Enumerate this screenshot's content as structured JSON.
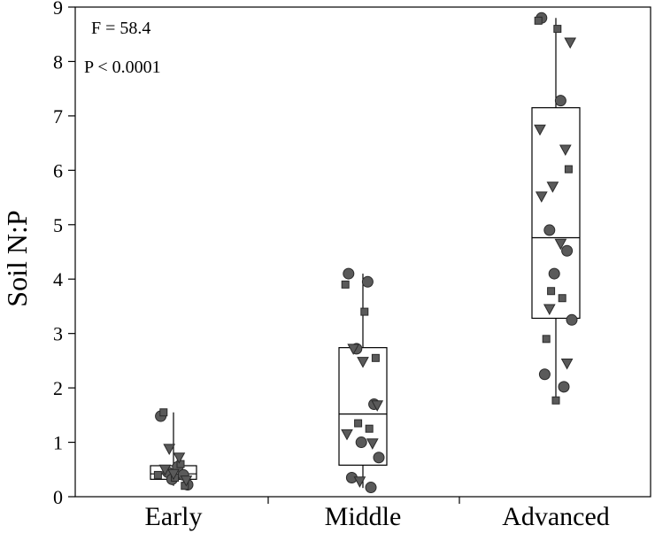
{
  "chart_data": {
    "type": "box",
    "ylabel": "Soil N:P",
    "xlabel": "",
    "ylim": [
      0,
      9
    ],
    "yticks": [
      "0",
      "1",
      "2",
      "3",
      "4",
      "5",
      "6",
      "7",
      "8",
      "9"
    ],
    "categories": [
      "Early",
      "Middle",
      "Advanced"
    ],
    "annotations": [
      "F = 58.4",
      "P < 0.0001"
    ],
    "boxes": [
      {
        "category": "Early",
        "whisker_low": 0.2,
        "q1": 0.32,
        "median": 0.42,
        "q3": 0.57,
        "whisker_high": 1.55
      },
      {
        "category": "Middle",
        "whisker_low": 0.16,
        "q1": 0.58,
        "median": 1.52,
        "q3": 2.74,
        "whisker_high": 4.1
      },
      {
        "category": "Advanced",
        "whisker_low": 1.75,
        "q1": 3.28,
        "median": 4.76,
        "q3": 7.15,
        "whisker_high": 8.8
      }
    ],
    "points": [
      {
        "category": "Early",
        "marker": "circle",
        "y": 1.48
      },
      {
        "category": "Early",
        "marker": "circle",
        "y": 0.55
      },
      {
        "category": "Early",
        "marker": "circle",
        "y": 0.45
      },
      {
        "category": "Early",
        "marker": "circle",
        "y": 0.4
      },
      {
        "category": "Early",
        "marker": "circle",
        "y": 0.32
      },
      {
        "category": "Early",
        "marker": "circle",
        "y": 0.22
      },
      {
        "category": "Early",
        "marker": "square",
        "y": 1.55
      },
      {
        "category": "Early",
        "marker": "square",
        "y": 0.6
      },
      {
        "category": "Early",
        "marker": "square",
        "y": 0.4
      },
      {
        "category": "Early",
        "marker": "square",
        "y": 0.35
      },
      {
        "category": "Early",
        "marker": "square",
        "y": 0.2
      },
      {
        "category": "Early",
        "marker": "triangle",
        "y": 0.88
      },
      {
        "category": "Early",
        "marker": "triangle",
        "y": 0.72
      },
      {
        "category": "Early",
        "marker": "triangle",
        "y": 0.5
      },
      {
        "category": "Early",
        "marker": "triangle",
        "y": 0.42
      },
      {
        "category": "Early",
        "marker": "triangle",
        "y": 0.3
      },
      {
        "category": "Middle",
        "marker": "circle",
        "y": 4.1
      },
      {
        "category": "Middle",
        "marker": "circle",
        "y": 3.95
      },
      {
        "category": "Middle",
        "marker": "circle",
        "y": 2.72
      },
      {
        "category": "Middle",
        "marker": "circle",
        "y": 1.7
      },
      {
        "category": "Middle",
        "marker": "circle",
        "y": 1.0
      },
      {
        "category": "Middle",
        "marker": "circle",
        "y": 0.72
      },
      {
        "category": "Middle",
        "marker": "circle",
        "y": 0.35
      },
      {
        "category": "Middle",
        "marker": "circle",
        "y": 0.17
      },
      {
        "category": "Middle",
        "marker": "square",
        "y": 3.9
      },
      {
        "category": "Middle",
        "marker": "square",
        "y": 3.4
      },
      {
        "category": "Middle",
        "marker": "square",
        "y": 2.55
      },
      {
        "category": "Middle",
        "marker": "square",
        "y": 1.35
      },
      {
        "category": "Middle",
        "marker": "square",
        "y": 1.25
      },
      {
        "category": "Middle",
        "marker": "triangle",
        "y": 2.72
      },
      {
        "category": "Middle",
        "marker": "triangle",
        "y": 2.48
      },
      {
        "category": "Middle",
        "marker": "triangle",
        "y": 1.68
      },
      {
        "category": "Middle",
        "marker": "triangle",
        "y": 1.15
      },
      {
        "category": "Middle",
        "marker": "triangle",
        "y": 0.98
      },
      {
        "category": "Middle",
        "marker": "triangle",
        "y": 0.28
      },
      {
        "category": "Advanced",
        "marker": "circle",
        "y": 8.8
      },
      {
        "category": "Advanced",
        "marker": "circle",
        "y": 7.28
      },
      {
        "category": "Advanced",
        "marker": "circle",
        "y": 4.9
      },
      {
        "category": "Advanced",
        "marker": "circle",
        "y": 4.52
      },
      {
        "category": "Advanced",
        "marker": "circle",
        "y": 4.1
      },
      {
        "category": "Advanced",
        "marker": "circle",
        "y": 3.25
      },
      {
        "category": "Advanced",
        "marker": "circle",
        "y": 2.25
      },
      {
        "category": "Advanced",
        "marker": "circle",
        "y": 2.02
      },
      {
        "category": "Advanced",
        "marker": "square",
        "y": 8.75
      },
      {
        "category": "Advanced",
        "marker": "square",
        "y": 8.6
      },
      {
        "category": "Advanced",
        "marker": "square",
        "y": 6.02
      },
      {
        "category": "Advanced",
        "marker": "square",
        "y": 3.78
      },
      {
        "category": "Advanced",
        "marker": "square",
        "y": 3.65
      },
      {
        "category": "Advanced",
        "marker": "square",
        "y": 2.9
      },
      {
        "category": "Advanced",
        "marker": "square",
        "y": 1.77
      },
      {
        "category": "Advanced",
        "marker": "triangle",
        "y": 8.35
      },
      {
        "category": "Advanced",
        "marker": "triangle",
        "y": 6.75
      },
      {
        "category": "Advanced",
        "marker": "triangle",
        "y": 6.38
      },
      {
        "category": "Advanced",
        "marker": "triangle",
        "y": 5.7
      },
      {
        "category": "Advanced",
        "marker": "triangle",
        "y": 5.52
      },
      {
        "category": "Advanced",
        "marker": "triangle",
        "y": 4.65
      },
      {
        "category": "Advanced",
        "marker": "triangle",
        "y": 3.45
      },
      {
        "category": "Advanced",
        "marker": "triangle",
        "y": 2.45
      }
    ],
    "grid": false,
    "colors": {
      "marker_fill": "#5a5a5a",
      "marker_edge": "#2a2a2a",
      "box": "#000000"
    }
  }
}
